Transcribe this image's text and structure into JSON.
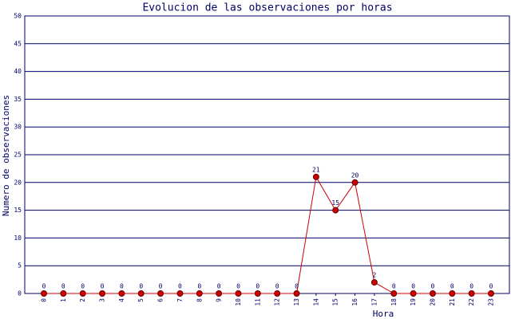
{
  "chart_data": {
    "type": "line",
    "title": "Evolucion de las observaciones por horas",
    "x_label": "Hora",
    "y_label": "Numero de observaciones",
    "categories": [
      "0",
      "1",
      "2",
      "3",
      "4",
      "5",
      "6",
      "7",
      "8",
      "9",
      "10",
      "11",
      "12",
      "13",
      "14",
      "15",
      "16",
      "17",
      "18",
      "19",
      "20",
      "21",
      "22",
      "23"
    ],
    "values": [
      0,
      0,
      0,
      0,
      0,
      0,
      0,
      0,
      0,
      0,
      0,
      0,
      0,
      0,
      21,
      15,
      20,
      2,
      0,
      0,
      0,
      0,
      0,
      0
    ],
    "color": "#cc0000",
    "ylim": [
      0,
      50
    ],
    "yticks": [
      0,
      5,
      10,
      15,
      20,
      25,
      30,
      35,
      40,
      45,
      50
    ],
    "grid": true
  }
}
